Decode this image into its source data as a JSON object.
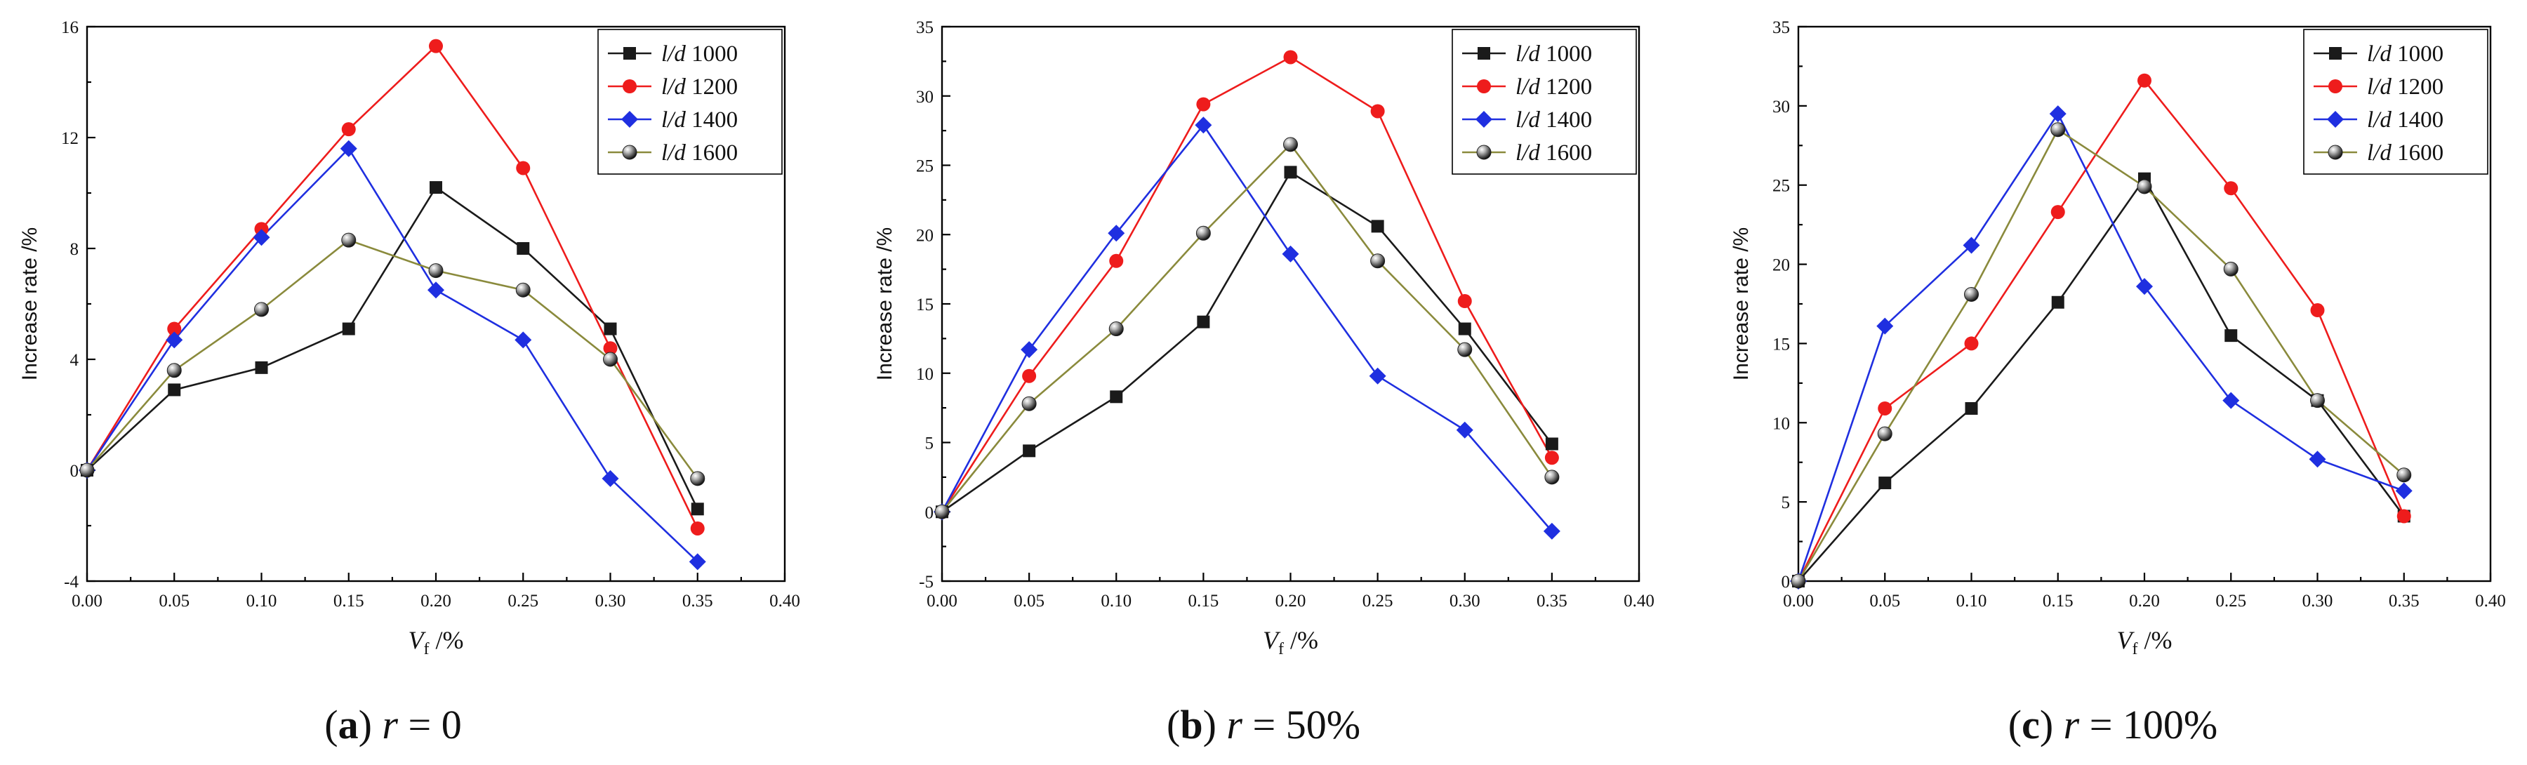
{
  "chart_data": [
    {
      "type": "line",
      "panel_letter": "a",
      "caption_var": "r",
      "caption_rest": " = 0",
      "ylabel": "Increase rate /%",
      "xlabel_main": "V",
      "xlabel_sub": "f",
      "xlabel_unit": " /%",
      "xlim": [
        0,
        0.4
      ],
      "ylim": [
        -4,
        16
      ],
      "xticks": [
        "0.00",
        "0.05",
        "0.10",
        "0.15",
        "0.20",
        "0.25",
        "0.30",
        "0.35",
        "0.40"
      ],
      "yticks": [
        -4,
        0,
        4,
        8,
        12,
        16
      ],
      "x": [
        0,
        0.05,
        0.1,
        0.15,
        0.2,
        0.25,
        0.3,
        0.35
      ],
      "series": [
        {
          "name": "l/d",
          "ratio": "1000",
          "color": "#1a1a1a",
          "marker": "square",
          "values": [
            0,
            2.9,
            3.7,
            5.1,
            10.2,
            8.0,
            5.1,
            -1.4
          ]
        },
        {
          "name": "l/d",
          "ratio": "1200",
          "color": "#ee1c1c",
          "marker": "circle",
          "values": [
            0,
            5.1,
            8.7,
            12.3,
            15.3,
            10.9,
            4.4,
            -2.1
          ]
        },
        {
          "name": "l/d",
          "ratio": "1400",
          "color": "#1f2fe0",
          "marker": "diamond",
          "values": [
            0,
            4.7,
            8.4,
            11.6,
            6.5,
            4.7,
            -0.3,
            -3.3
          ]
        },
        {
          "name": "l/d",
          "ratio": "1600",
          "color": "#8a8a3c",
          "marker": "ball",
          "values": [
            0,
            3.6,
            5.8,
            8.3,
            7.2,
            6.5,
            4.0,
            -0.3
          ]
        }
      ]
    },
    {
      "type": "line",
      "panel_letter": "b",
      "caption_var": "r",
      "caption_rest": " = 50%",
      "ylabel": "Increase rate /%",
      "xlabel_main": "V",
      "xlabel_sub": "f",
      "xlabel_unit": " /%",
      "xlim": [
        0,
        0.4
      ],
      "ylim": [
        -5,
        35
      ],
      "xticks": [
        "0.00",
        "0.05",
        "0.10",
        "0.15",
        "0.20",
        "0.25",
        "0.30",
        "0.35",
        "0.40"
      ],
      "yticks": [
        -5,
        0,
        5,
        10,
        15,
        20,
        25,
        30,
        35
      ],
      "x": [
        0,
        0.05,
        0.1,
        0.15,
        0.2,
        0.25,
        0.3,
        0.35
      ],
      "series": [
        {
          "name": "l/d",
          "ratio": "1000",
          "color": "#1a1a1a",
          "marker": "square",
          "values": [
            0,
            4.4,
            8.3,
            13.7,
            24.5,
            20.6,
            13.2,
            4.9
          ]
        },
        {
          "name": "l/d",
          "ratio": "1200",
          "color": "#ee1c1c",
          "marker": "circle",
          "values": [
            0,
            9.8,
            18.1,
            29.4,
            32.8,
            28.9,
            15.2,
            3.9
          ]
        },
        {
          "name": "l/d",
          "ratio": "1400",
          "color": "#1f2fe0",
          "marker": "diamond",
          "values": [
            0,
            11.7,
            20.1,
            27.9,
            18.6,
            9.8,
            5.9,
            -1.4
          ]
        },
        {
          "name": "l/d",
          "ratio": "1600",
          "color": "#8a8a3c",
          "marker": "ball",
          "values": [
            0,
            7.8,
            13.2,
            20.1,
            26.5,
            18.1,
            11.7,
            2.5
          ]
        }
      ]
    },
    {
      "type": "line",
      "panel_letter": "c",
      "caption_var": "r",
      "caption_rest": " = 100%",
      "ylabel": "Increase rate /%",
      "xlabel_main": "V",
      "xlabel_sub": "f",
      "xlabel_unit": " /%",
      "xlim": [
        0,
        0.4
      ],
      "ylim": [
        0,
        35
      ],
      "xticks": [
        "0.00",
        "0.05",
        "0.10",
        "0.15",
        "0.20",
        "0.25",
        "0.30",
        "0.35",
        "0.40"
      ],
      "yticks": [
        0,
        5,
        10,
        15,
        20,
        25,
        30,
        35
      ],
      "x": [
        0,
        0.05,
        0.1,
        0.15,
        0.2,
        0.25,
        0.3,
        0.35
      ],
      "series": [
        {
          "name": "l/d",
          "ratio": "1000",
          "color": "#1a1a1a",
          "marker": "square",
          "values": [
            0,
            6.2,
            10.9,
            17.6,
            25.4,
            15.5,
            11.4,
            4.1
          ]
        },
        {
          "name": "l/d",
          "ratio": "1200",
          "color": "#ee1c1c",
          "marker": "circle",
          "values": [
            0,
            10.9,
            15.0,
            23.3,
            31.6,
            24.8,
            17.1,
            4.1
          ]
        },
        {
          "name": "l/d",
          "ratio": "1400",
          "color": "#1f2fe0",
          "marker": "diamond",
          "values": [
            0,
            16.1,
            21.2,
            29.5,
            18.6,
            11.4,
            7.7,
            5.7
          ]
        },
        {
          "name": "l/d",
          "ratio": "1600",
          "color": "#8a8a3c",
          "marker": "ball",
          "values": [
            0,
            9.3,
            18.1,
            28.5,
            24.9,
            19.7,
            11.4,
            6.7
          ]
        }
      ]
    }
  ]
}
